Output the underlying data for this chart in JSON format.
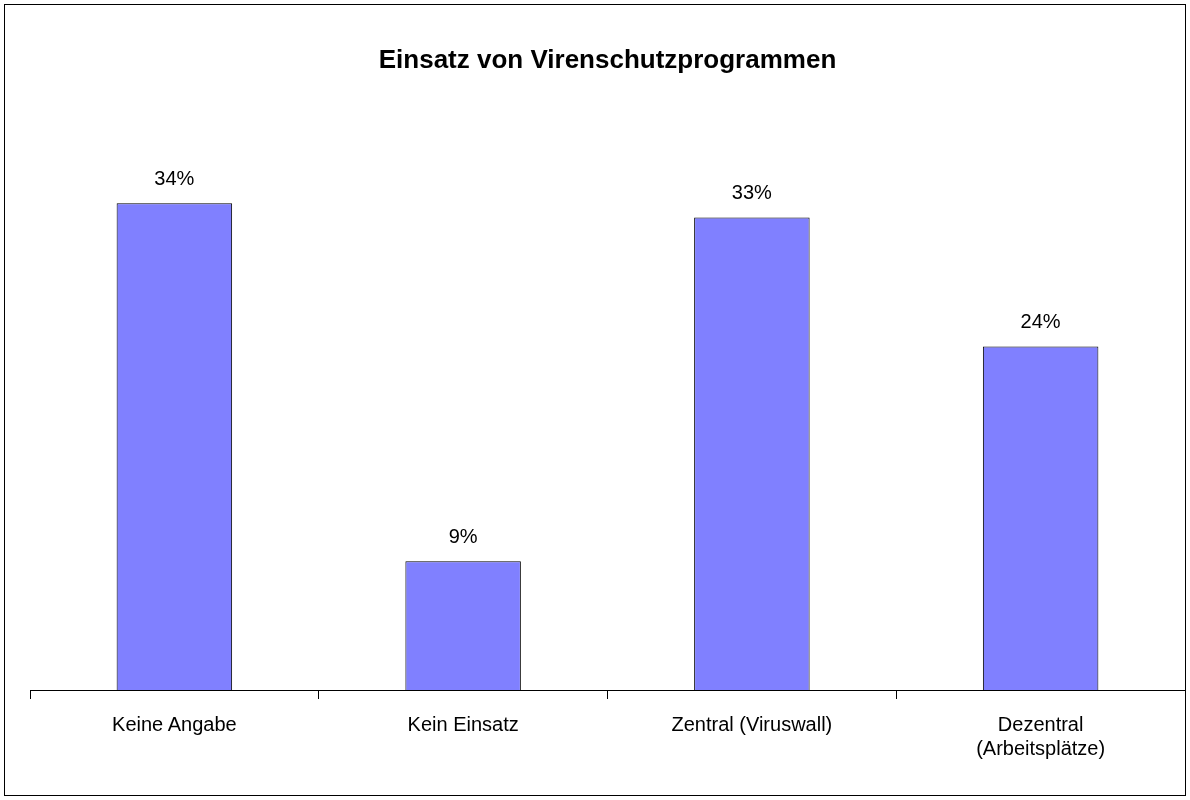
{
  "chart_data": {
    "type": "bar",
    "title": "Einsatz von Virenschutzprogrammen",
    "categories": [
      "Keine Angabe",
      "Kein Einsatz",
      "Zentral (Viruswall)",
      "Dezentral (Arbeitsplätze)"
    ],
    "values": [
      34,
      9,
      33,
      24
    ],
    "value_labels": [
      "34%",
      "9%",
      "33%",
      "24%"
    ],
    "color": "#8080ff",
    "grid": false,
    "legend": false
  }
}
